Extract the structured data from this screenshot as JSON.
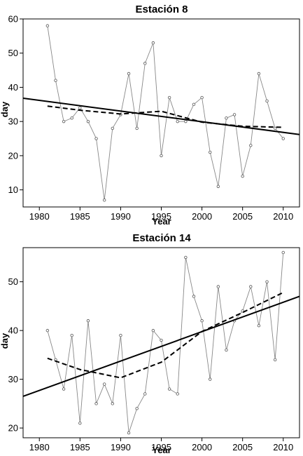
{
  "chart_data": [
    {
      "type": "line",
      "title": "Estación 8",
      "xlabel": "Year",
      "ylabel": "day",
      "xlim": [
        1978,
        2012
      ],
      "ylim": [
        5,
        60
      ],
      "xticks": [
        1980,
        1985,
        1990,
        1995,
        2000,
        2005,
        2010
      ],
      "yticks": [
        10,
        20,
        30,
        40,
        50,
        60
      ],
      "grid": false,
      "series": [
        {
          "style": "observed",
          "x": [
            1981,
            1982,
            1983,
            1984,
            1985,
            1986,
            1987,
            1988,
            1989,
            1990,
            1991,
            1992,
            1993,
            1994,
            1995,
            1996,
            1997,
            1998,
            1999,
            2000,
            2001,
            2002,
            2003,
            2004,
            2005,
            2006,
            2007,
            2008,
            2009,
            2010
          ],
          "values": [
            58,
            42,
            30,
            31,
            34,
            30,
            25,
            7,
            28,
            32,
            44,
            28,
            47,
            53,
            20,
            37,
            30,
            30,
            35,
            37,
            21,
            11,
            31,
            32,
            14,
            23,
            44,
            36,
            28,
            25
          ]
        },
        {
          "style": "linear-trend",
          "x": [
            1978,
            2012
          ],
          "values": [
            36.8,
            26.2
          ]
        },
        {
          "style": "smoothed",
          "x": [
            1981,
            1985,
            1990,
            1995,
            2000,
            2005,
            2010
          ],
          "values": [
            34.5,
            33.3,
            32.2,
            33.0,
            29.8,
            28.6,
            28.3
          ]
        }
      ]
    },
    {
      "type": "line",
      "title": "Estación 14",
      "xlabel": "Year",
      "ylabel": "day",
      "xlim": [
        1978,
        2012
      ],
      "ylim": [
        18,
        57
      ],
      "xticks": [
        1980,
        1985,
        1990,
        1995,
        2000,
        2005,
        2010
      ],
      "yticks": [
        20,
        30,
        40,
        50
      ],
      "grid": false,
      "series": [
        {
          "style": "observed",
          "x": [
            1981,
            1982,
            1983,
            1984,
            1985,
            1986,
            1987,
            1988,
            1989,
            1990,
            1991,
            1992,
            1993,
            1994,
            1995,
            1996,
            1997,
            1998,
            1999,
            2000,
            2001,
            2002,
            2003,
            2004,
            2005,
            2006,
            2007,
            2008,
            2009,
            2010
          ],
          "values": [
            40,
            34,
            28,
            39,
            21,
            42,
            25,
            29,
            25,
            39,
            19,
            24,
            27,
            40,
            38,
            28,
            27,
            55,
            47,
            42,
            30,
            49,
            36,
            42,
            44,
            49,
            41,
            50,
            34,
            56
          ]
        },
        {
          "style": "linear-trend",
          "x": [
            1978,
            2012
          ],
          "values": [
            26.5,
            47.0
          ]
        },
        {
          "style": "smoothed",
          "x": [
            1981,
            1985,
            1990,
            1995,
            2000,
            2005,
            2010
          ],
          "values": [
            34.3,
            32.0,
            30.3,
            33.5,
            39.8,
            43.7,
            47.8
          ]
        }
      ]
    }
  ]
}
